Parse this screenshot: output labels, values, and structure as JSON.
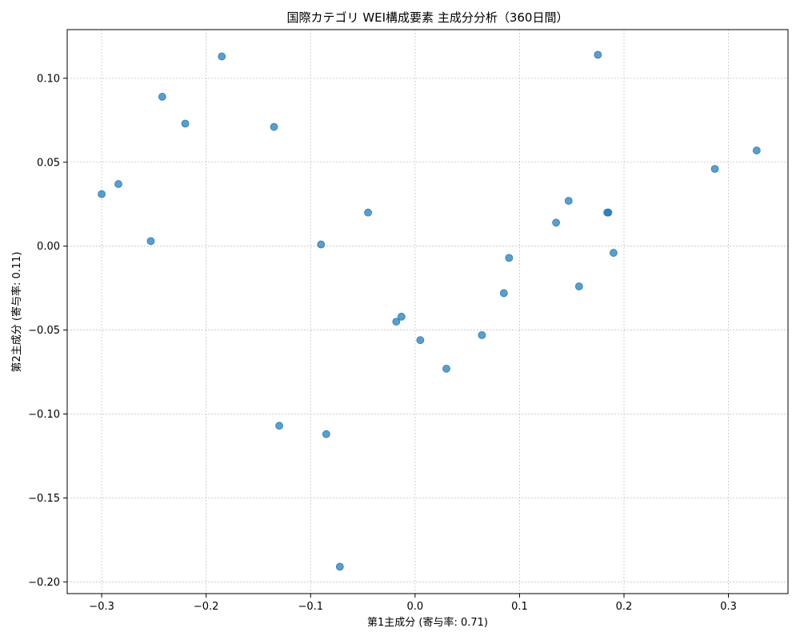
{
  "chart_data": {
    "type": "scatter",
    "title": "国際カテゴリ WEI構成要素 主成分分析（360日間）",
    "xlabel": "第1主成分 (寄与率: 0.71)",
    "ylabel": "第2主成分 (寄与率: 0.11)",
    "xlim": [
      -0.333,
      0.357
    ],
    "ylim": [
      -0.207,
      0.129
    ],
    "xticks": [
      -0.3,
      -0.2,
      -0.1,
      0.0,
      0.1,
      0.2,
      0.3
    ],
    "xtick_labels": [
      "−0.3",
      "−0.2",
      "−0.1",
      "0.0",
      "0.1",
      "0.2",
      "0.3"
    ],
    "yticks": [
      -0.2,
      -0.15,
      -0.1,
      -0.05,
      0.0,
      0.05,
      0.1
    ],
    "ytick_labels": [
      "−0.20",
      "−0.15",
      "−0.10",
      "−0.05",
      "0.00",
      "0.05",
      "0.10"
    ],
    "grid": true,
    "marker_color": "#1f77b4",
    "points": [
      {
        "x": -0.3,
        "y": 0.031
      },
      {
        "x": -0.284,
        "y": 0.037
      },
      {
        "x": -0.253,
        "y": 0.003
      },
      {
        "x": -0.242,
        "y": 0.089
      },
      {
        "x": -0.22,
        "y": 0.073
      },
      {
        "x": -0.185,
        "y": 0.113
      },
      {
        "x": -0.135,
        "y": 0.071
      },
      {
        "x": -0.13,
        "y": -0.107
      },
      {
        "x": -0.09,
        "y": 0.001
      },
      {
        "x": -0.085,
        "y": -0.112
      },
      {
        "x": -0.072,
        "y": -0.191
      },
      {
        "x": -0.045,
        "y": 0.02
      },
      {
        "x": -0.018,
        "y": -0.045
      },
      {
        "x": -0.013,
        "y": -0.042
      },
      {
        "x": 0.005,
        "y": -0.056
      },
      {
        "x": 0.03,
        "y": -0.073
      },
      {
        "x": 0.064,
        "y": -0.053
      },
      {
        "x": 0.085,
        "y": -0.028
      },
      {
        "x": 0.09,
        "y": -0.007
      },
      {
        "x": 0.135,
        "y": 0.014
      },
      {
        "x": 0.147,
        "y": 0.027
      },
      {
        "x": 0.157,
        "y": -0.024
      },
      {
        "x": 0.175,
        "y": 0.114
      },
      {
        "x": 0.184,
        "y": 0.02
      },
      {
        "x": 0.185,
        "y": 0.02
      },
      {
        "x": 0.19,
        "y": -0.004
      },
      {
        "x": 0.287,
        "y": 0.046
      },
      {
        "x": 0.327,
        "y": 0.057
      }
    ]
  }
}
